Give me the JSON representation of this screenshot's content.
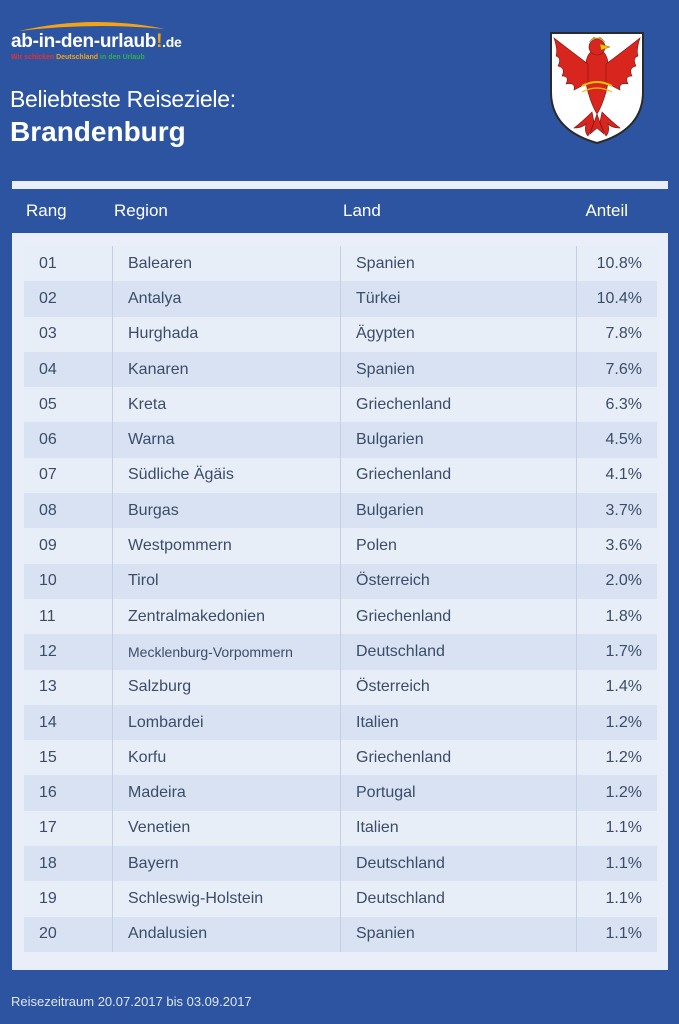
{
  "brand": {
    "logo_main": "ab-in-den-urlaub",
    "logo_excl": "!",
    "logo_tld": ".de",
    "tagline_part1": "Wir schicken ",
    "tagline_part2": "Deutschland",
    "tagline_part3": " in den Urlaub",
    "colors": {
      "background": "#2d54a1",
      "accent_orange": "#f5a214",
      "accent_red": "#e8302d",
      "accent_green": "#2fb34a"
    }
  },
  "header": {
    "subtitle": "Beliebteste Reiseziele:",
    "title": "Brandenburg",
    "coat_of_arms_icon": "brandenburg-eagle-coat-of-arms-icon"
  },
  "table": {
    "headers": {
      "rang": "Rang",
      "region": "Region",
      "land": "Land",
      "anteil": "Anteil"
    },
    "rows": [
      {
        "rang": "01",
        "region": "Balearen",
        "land": "Spanien",
        "anteil": "10.8%"
      },
      {
        "rang": "02",
        "region": "Antalya",
        "land": "Türkei",
        "anteil": "10.4%"
      },
      {
        "rang": "03",
        "region": "Hurghada",
        "land": "Ägypten",
        "anteil": "7.8%"
      },
      {
        "rang": "04",
        "region": "Kanaren",
        "land": "Spanien",
        "anteil": "7.6%"
      },
      {
        "rang": "05",
        "region": "Kreta",
        "land": "Griechenland",
        "anteil": "6.3%"
      },
      {
        "rang": "06",
        "region": "Warna",
        "land": "Bulgarien",
        "anteil": "4.5%"
      },
      {
        "rang": "07",
        "region": "Südliche Ägäis",
        "land": "Griechenland",
        "anteil": "4.1%"
      },
      {
        "rang": "08",
        "region": "Burgas",
        "land": "Bulgarien",
        "anteil": "3.7%"
      },
      {
        "rang": "09",
        "region": "Westpommern",
        "land": "Polen",
        "anteil": "3.6%"
      },
      {
        "rang": "10",
        "region": "Tirol",
        "land": "Österreich",
        "anteil": "2.0%"
      },
      {
        "rang": "11",
        "region": "Zentralmakedonien",
        "land": "Griechenland",
        "anteil": "1.8%"
      },
      {
        "rang": "12",
        "region": "Mecklenburg-Vorpommern",
        "land": "Deutschland",
        "anteil": "1.7%"
      },
      {
        "rang": "13",
        "region": "Salzburg",
        "land": "Österreich",
        "anteil": "1.4%"
      },
      {
        "rang": "14",
        "region": "Lombardei",
        "land": "Italien",
        "anteil": "1.2%"
      },
      {
        "rang": "15",
        "region": "Korfu",
        "land": "Griechenland",
        "anteil": "1.2%"
      },
      {
        "rang": "16",
        "region": "Madeira",
        "land": "Portugal",
        "anteil": "1.2%"
      },
      {
        "rang": "17",
        "region": "Venetien",
        "land": "Italien",
        "anteil": "1.1%"
      },
      {
        "rang": "18",
        "region": "Bayern",
        "land": "Deutschland",
        "anteil": "1.1%"
      },
      {
        "rang": "19",
        "region": "Schleswig-Holstein",
        "land": "Deutschland",
        "anteil": "1.1%"
      },
      {
        "rang": "20",
        "region": "Andalusien",
        "land": "Spanien",
        "anteil": "1.1%"
      }
    ]
  },
  "footer": {
    "text": "Reisezeitraum 20.07.2017 bis 03.09.2017"
  }
}
